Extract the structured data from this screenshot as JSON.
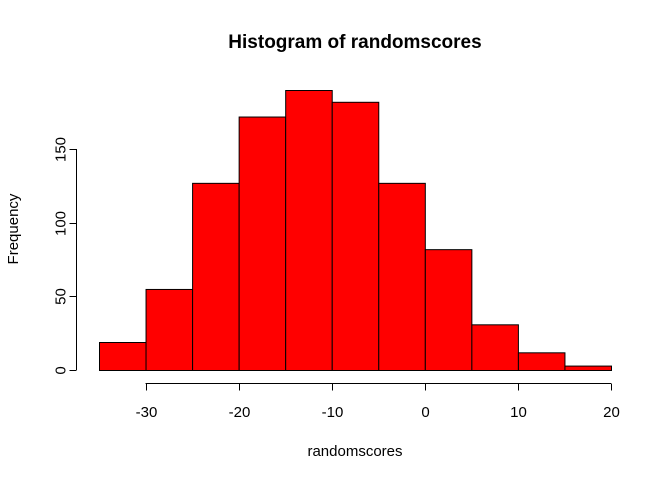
{
  "chart_data": {
    "type": "bar",
    "title": "Histogram of randomscores",
    "xlabel": "randomscores",
    "ylabel": "Frequency",
    "bin_edges": [
      -35,
      -30,
      -25,
      -20,
      -15,
      -10,
      -5,
      0,
      5,
      10,
      15,
      20
    ],
    "values": [
      19,
      55,
      127,
      172,
      190,
      182,
      127,
      82,
      31,
      12,
      3
    ],
    "bar_color": "#ff0000",
    "border_color": "#000000",
    "x_ticks": [
      -30,
      -20,
      -10,
      0,
      10,
      20
    ],
    "y_ticks": [
      0,
      50,
      100,
      150
    ],
    "xlim": [
      -35,
      20
    ],
    "ylim": [
      0,
      190
    ],
    "grid": false,
    "legend": "none"
  }
}
